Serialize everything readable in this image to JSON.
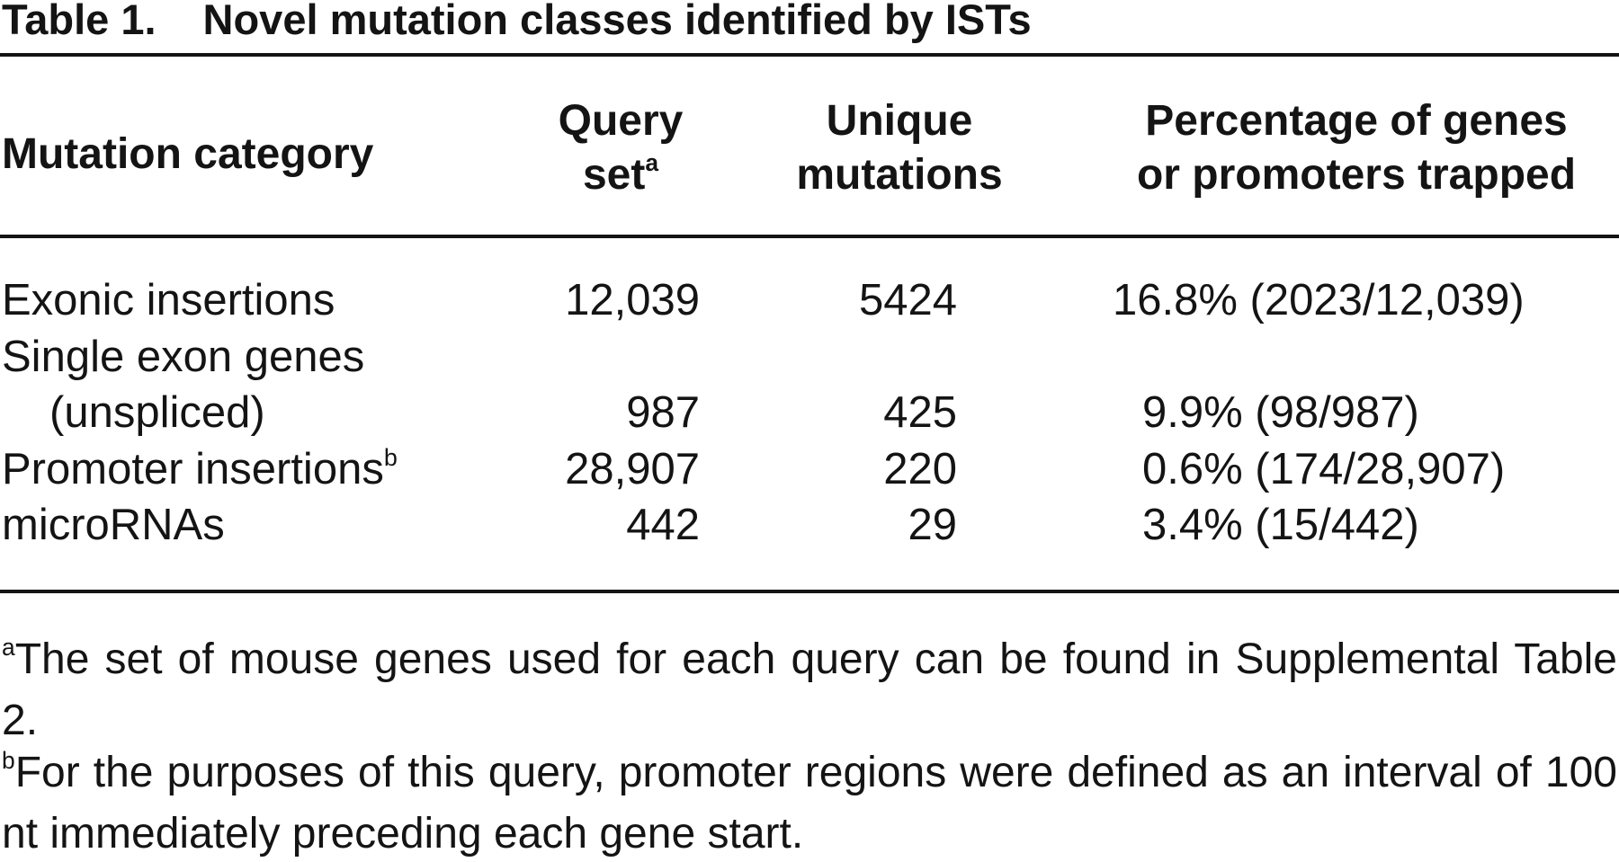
{
  "title": {
    "label": "Table 1.",
    "text": "Novel mutation classes identified by ISTs"
  },
  "columns": {
    "category": "Mutation category",
    "query_line1": "Query",
    "query_line2": "set",
    "query_mark": "a",
    "unique_line1": "Unique",
    "unique_line2": "mutations",
    "pct_line1": "Percentage of genes",
    "pct_line2": "or promoters trapped"
  },
  "rows": [
    {
      "category": "Exonic insertions",
      "category_mark": "",
      "query_set": "12,039",
      "unique": "5424",
      "percentage": "16.8% (2023/12,039)"
    },
    {
      "category": "Single exon genes",
      "category_cont": "(unspliced)",
      "query_set": "987",
      "unique": "425",
      "percentage": "9.9% (98/987)"
    },
    {
      "category": "Promoter insertions",
      "category_mark": "b",
      "query_set": "28,907",
      "unique": "220",
      "percentage": "0.6% (174/28,907)"
    },
    {
      "category": "microRNAs",
      "category_mark": "",
      "query_set": "442",
      "unique": "29",
      "percentage": "3.4% (15/442)"
    }
  ],
  "footnotes": [
    {
      "mark": "a",
      "text": "The set of mouse genes used for each query can be found in Supplemental Table 2."
    },
    {
      "mark": "b",
      "text": "For the purposes of this query, promoter regions were defined as an interval of 100 nt immediately preceding each gene start."
    }
  ]
}
